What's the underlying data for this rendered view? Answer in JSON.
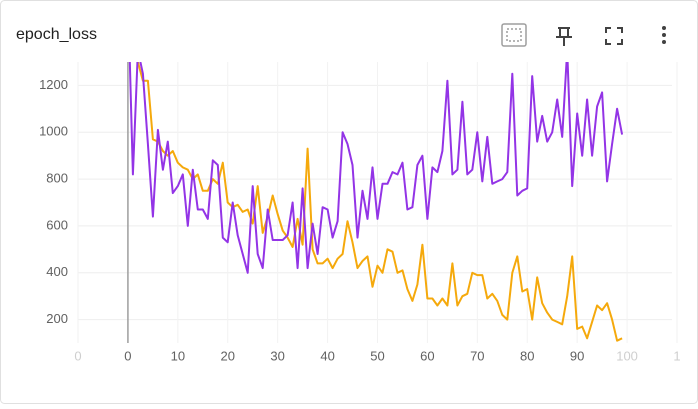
{
  "chart_data": {
    "type": "line",
    "title": "epoch_loss",
    "x": [
      0,
      1,
      2,
      3,
      4,
      5,
      6,
      7,
      8,
      9,
      10,
      11,
      12,
      13,
      14,
      15,
      16,
      17,
      18,
      19,
      20,
      21,
      22,
      23,
      24,
      25,
      26,
      27,
      28,
      29,
      30,
      31,
      32,
      33,
      34,
      35,
      36,
      37,
      38,
      39,
      40,
      41,
      42,
      43,
      44,
      45,
      46,
      47,
      48,
      49,
      50,
      51,
      52,
      53,
      54,
      55,
      56,
      57,
      58,
      59,
      60,
      61,
      62,
      63,
      64,
      65,
      66,
      67,
      68,
      69,
      70,
      71,
      72,
      73,
      74,
      75,
      76,
      77,
      78,
      79,
      80,
      81,
      82,
      83,
      84,
      85,
      86,
      87,
      88,
      89,
      90,
      91,
      92,
      93,
      94,
      95,
      96,
      97,
      98,
      99
    ],
    "series": [
      {
        "color": "#f5a90c",
        "values": [
          1600,
          1350,
          1300,
          1220,
          1220,
          970,
          960,
          920,
          900,
          920,
          870,
          850,
          840,
          800,
          820,
          750,
          750,
          800,
          780,
          870,
          700,
          680,
          690,
          660,
          670,
          610,
          770,
          570,
          640,
          730,
          650,
          580,
          550,
          510,
          630,
          520,
          930,
          500,
          440,
          440,
          460,
          420,
          460,
          480,
          620,
          530,
          420,
          450,
          470,
          340,
          430,
          400,
          500,
          490,
          400,
          410,
          330,
          280,
          350,
          520,
          290,
          290,
          260,
          290,
          260,
          440,
          260,
          300,
          310,
          400,
          390,
          390,
          290,
          310,
          280,
          220,
          200,
          400,
          470,
          320,
          330,
          200,
          380,
          270,
          230,
          200,
          190,
          180,
          300,
          470,
          160,
          170,
          120,
          190,
          260,
          240,
          270,
          200,
          110,
          120
        ]
      },
      {
        "color": "#9334e6",
        "values": [
          1600,
          820,
          1350,
          1250,
          950,
          640,
          1010,
          840,
          960,
          740,
          770,
          820,
          600,
          840,
          670,
          670,
          630,
          880,
          860,
          550,
          530,
          700,
          560,
          480,
          400,
          770,
          480,
          420,
          670,
          540,
          540,
          540,
          560,
          700,
          420,
          760,
          420,
          610,
          480,
          680,
          670,
          550,
          620,
          1000,
          950,
          860,
          550,
          750,
          630,
          850,
          630,
          780,
          780,
          830,
          820,
          870,
          670,
          680,
          860,
          900,
          630,
          850,
          830,
          920,
          1220,
          820,
          840,
          1130,
          820,
          840,
          1000,
          790,
          980,
          780,
          790,
          800,
          830,
          1250,
          730,
          750,
          760,
          1240,
          960,
          1070,
          960,
          1000,
          1140,
          980,
          1350,
          770,
          1080,
          900,
          1140,
          900,
          1110,
          1170,
          790,
          950,
          1100,
          990
        ]
      }
    ],
    "xlim": [
      -10,
      109
    ],
    "ylim": [
      100,
      1300
    ],
    "xticks": [
      {
        "value": -10,
        "label": "0"
      },
      0,
      10,
      20,
      30,
      40,
      50,
      60,
      70,
      80,
      90,
      100,
      {
        "value": 110,
        "label": "1"
      }
    ],
    "yticks": [
      200,
      400,
      600,
      800,
      1000,
      1200
    ],
    "grid": true
  }
}
